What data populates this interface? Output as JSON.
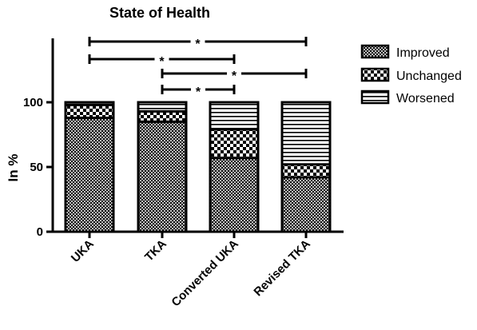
{
  "chart_data": {
    "type": "bar",
    "stacked": true,
    "title": "State of Health",
    "ylabel": "In %",
    "xlabel": "",
    "ylim": [
      0,
      100
    ],
    "yticks": [
      0,
      50,
      100
    ],
    "categories": [
      "UKA",
      "TKA",
      "Converted UKA",
      "Revised TKA"
    ],
    "series": [
      {
        "name": "Improved",
        "pattern": "crosshatch",
        "values": [
          88,
          85,
          57,
          42
        ]
      },
      {
        "name": "Unchanged",
        "pattern": "checker",
        "values": [
          10,
          8,
          22,
          10
        ]
      },
      {
        "name": "Worsened",
        "pattern": "horizontal-lines",
        "values": [
          2,
          7,
          21,
          48
        ]
      }
    ],
    "significance": [
      {
        "from": "UKA",
        "to": "Revised TKA",
        "label": "*"
      },
      {
        "from": "UKA",
        "to": "Converted UKA",
        "label": "*"
      },
      {
        "from": "TKA",
        "to": "Revised TKA",
        "label": "*"
      },
      {
        "from": "TKA",
        "to": "Converted UKA",
        "label": "*"
      }
    ],
    "legend_position": "top-right",
    "grid": false
  }
}
